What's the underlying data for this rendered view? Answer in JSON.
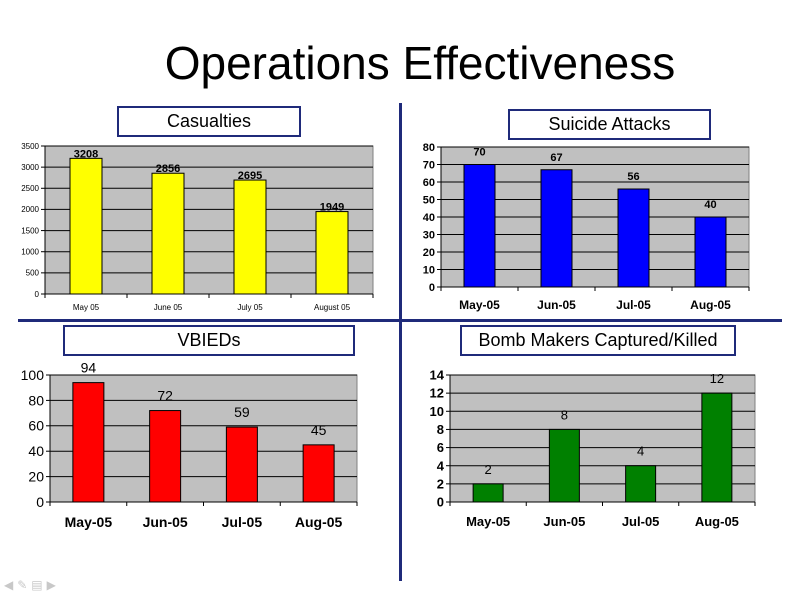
{
  "slide": {
    "title": "Operations Effectiveness"
  },
  "nav": {
    "icons": [
      "arrow-left-icon",
      "pen-icon",
      "menu-icon",
      "arrow-right-icon"
    ]
  },
  "chart_data": [
    {
      "type": "bar",
      "title": "Casualties",
      "categories": [
        "May 05",
        "June 05",
        "July 05",
        "August  05"
      ],
      "series": [
        {
          "values": [
            3208,
            2856,
            2695,
            1949
          ]
        }
      ],
      "data_labels": [
        "3208",
        "2856",
        "2695",
        "1949"
      ],
      "ylim": [
        0,
        3500
      ],
      "yticks": [
        "0",
        "500",
        "1000",
        "1500",
        "2000",
        "2500",
        "3000",
        "3500"
      ],
      "grid": true,
      "bar_color": "#ffff00",
      "plot_bg": "#c0c0c0"
    },
    {
      "type": "bar",
      "title": "Suicide Attacks",
      "categories": [
        "May-05",
        "Jun-05",
        "Jul-05",
        "Aug-05"
      ],
      "series": [
        {
          "values": [
            70,
            67,
            56,
            40
          ]
        }
      ],
      "data_labels": [
        "70",
        "67",
        "56",
        "40"
      ],
      "ylim": [
        0,
        80
      ],
      "yticks": [
        "0",
        "10",
        "20",
        "30",
        "40",
        "50",
        "60",
        "70",
        "80"
      ],
      "grid": true,
      "bar_color": "#0000ff",
      "plot_bg": "#c0c0c0"
    },
    {
      "type": "bar",
      "title": "VBIEDs",
      "categories": [
        "May-05",
        "Jun-05",
        "Jul-05",
        "Aug-05"
      ],
      "series": [
        {
          "values": [
            94,
            72,
            59,
            45
          ]
        }
      ],
      "data_labels": [
        "94",
        "72",
        "59",
        "45"
      ],
      "ylim": [
        0,
        100
      ],
      "yticks": [
        "0",
        "20",
        "40",
        "60",
        "80",
        "100"
      ],
      "grid": true,
      "bar_color": "#ff0000",
      "plot_bg": "#c0c0c0"
    },
    {
      "type": "bar",
      "title": "Bomb Makers Captured/Killed",
      "categories": [
        "May-05",
        "Jun-05",
        "Jul-05",
        "Aug-05"
      ],
      "series": [
        {
          "values": [
            2,
            8,
            4,
            12
          ]
        }
      ],
      "data_labels": [
        "2",
        "8",
        "4",
        "12"
      ],
      "ylim": [
        0,
        14
      ],
      "yticks": [
        "0",
        "2",
        "4",
        "6",
        "8",
        "10",
        "12",
        "14"
      ],
      "grid": true,
      "bar_color": "#008000",
      "plot_bg": "#c0c0c0"
    }
  ]
}
